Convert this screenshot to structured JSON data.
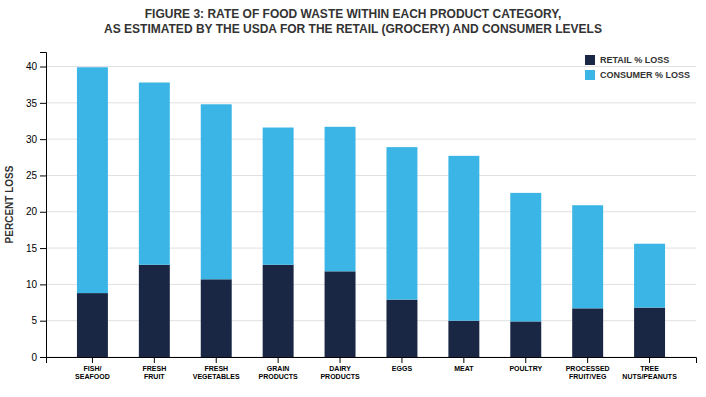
{
  "chart_data": {
    "type": "bar",
    "stacked": true,
    "title": "FIGURE 3: RATE OF FOOD WASTE WITHIN EACH PRODUCT CATEGORY,\nAS ESTIMATED BY THE USDA FOR THE RETAIL (GROCERY) AND CONSUMER LEVELS",
    "y_label": "PERCENT LOSS",
    "categories": [
      "FISH/\nSEAFOOD",
      "FRESH\nFRUIT",
      "FRESH\nVEGETABLES",
      "GRAIN\nPRODUCTS",
      "DAIRY\nPRODUCTS",
      "EGGS",
      "MEAT",
      "POULTRY",
      "PROCESSED\nFRUIT/VEG",
      "TREE\nNUTS/PEANUTS"
    ],
    "series": [
      {
        "name": "RETAIL % LOSS",
        "color": "#1a2744",
        "values": [
          8.8,
          12.7,
          10.7,
          12.7,
          11.8,
          7.9,
          5.0,
          4.9,
          6.7,
          6.8
        ]
      },
      {
        "name": "CONSUMER % LOSS",
        "color": "#3ab5e5",
        "values": [
          31.1,
          25.1,
          24.1,
          18.9,
          19.9,
          21.0,
          22.7,
          17.7,
          14.2,
          8.8
        ]
      }
    ],
    "ylim": [
      0,
      42
    ],
    "yticks": [
      0,
      5,
      10,
      15,
      20,
      25,
      30,
      35,
      40
    ],
    "grid": true,
    "legend": "upper right"
  }
}
